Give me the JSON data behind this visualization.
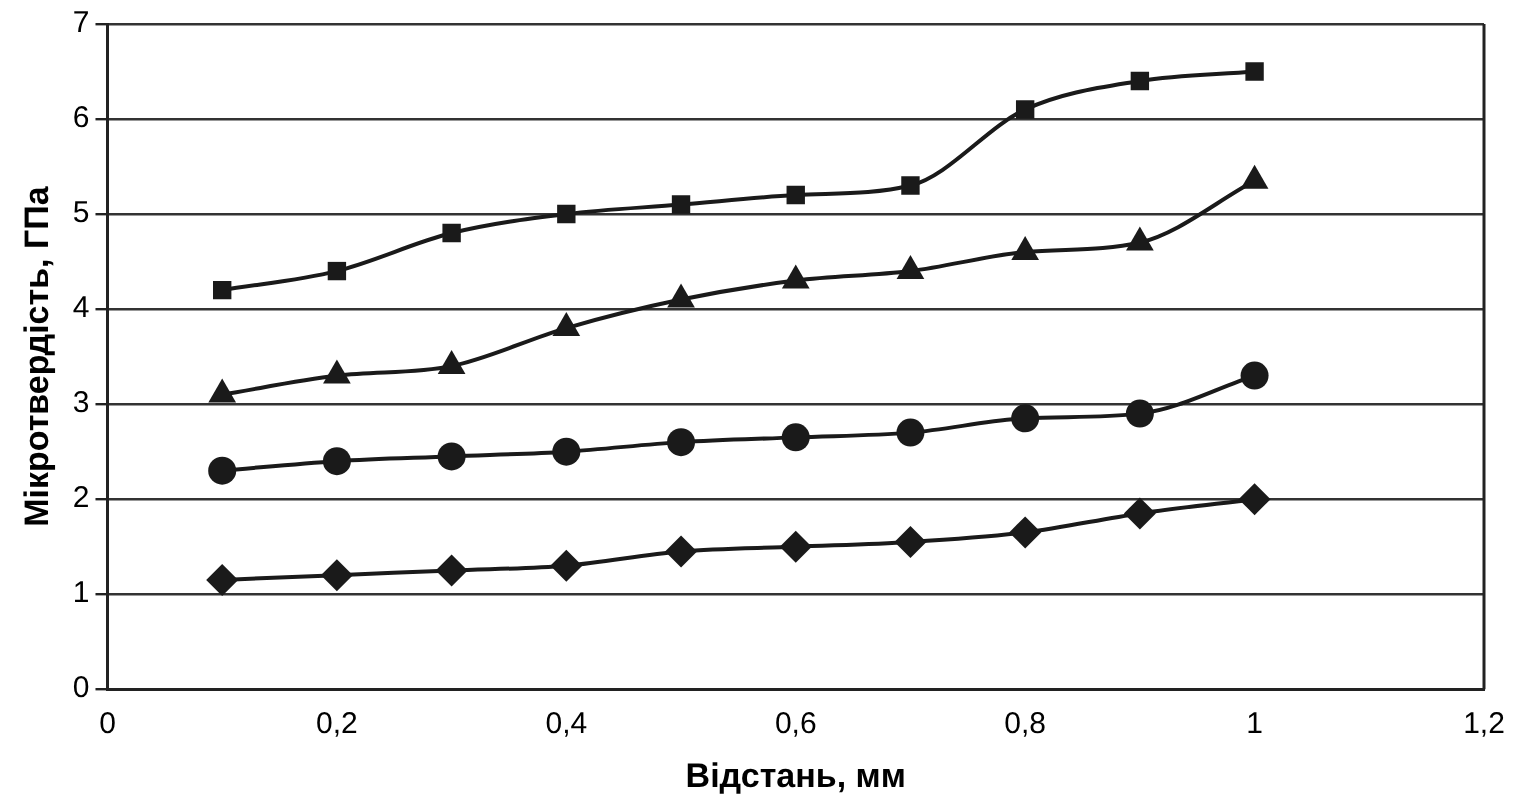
{
  "chart_data": {
    "type": "line",
    "xlabel": "Відстань, мм",
    "ylabel": "Мікротвердість, ГПа",
    "x": [
      0.1,
      0.2,
      0.3,
      0.4,
      0.5,
      0.6,
      0.7,
      0.8,
      0.9,
      1
    ],
    "xlim": [
      0,
      1.2
    ],
    "xticks": [
      0,
      {
        "value": 0.2,
        "label": "0,2"
      },
      {
        "value": 0.4,
        "label": "0,4"
      },
      {
        "value": 0.6,
        "label": "0,6"
      },
      {
        "value": 0.8,
        "label": "0,8"
      },
      1,
      {
        "value": 1.2,
        "label": "1,2"
      }
    ],
    "ylim": [
      0,
      7
    ],
    "yticks": [
      0,
      1,
      2,
      3,
      4,
      5,
      6,
      7
    ],
    "grid": "y",
    "line_style": "solid",
    "series": [
      {
        "color": "#1a1a1a",
        "marker": "square",
        "values": [
          4.2,
          4.4,
          4.8,
          5.0,
          5.1,
          5.2,
          5.3,
          6.1,
          6.4,
          6.5
        ]
      },
      {
        "color": "#1a1a1a",
        "marker": "triangle",
        "values": [
          3.1,
          3.3,
          3.4,
          3.8,
          4.1,
          4.3,
          4.4,
          4.6,
          4.7,
          5.35
        ]
      },
      {
        "color": "#1a1a1a",
        "marker": "circle",
        "values": [
          2.3,
          2.4,
          2.45,
          2.5,
          2.6,
          2.65,
          2.7,
          2.85,
          2.9,
          3.3
        ]
      },
      {
        "color": "#1a1a1a",
        "marker": "diamond",
        "values": [
          1.15,
          1.2,
          1.25,
          1.3,
          1.45,
          1.5,
          1.55,
          1.65,
          1.85,
          2.0
        ]
      }
    ]
  }
}
